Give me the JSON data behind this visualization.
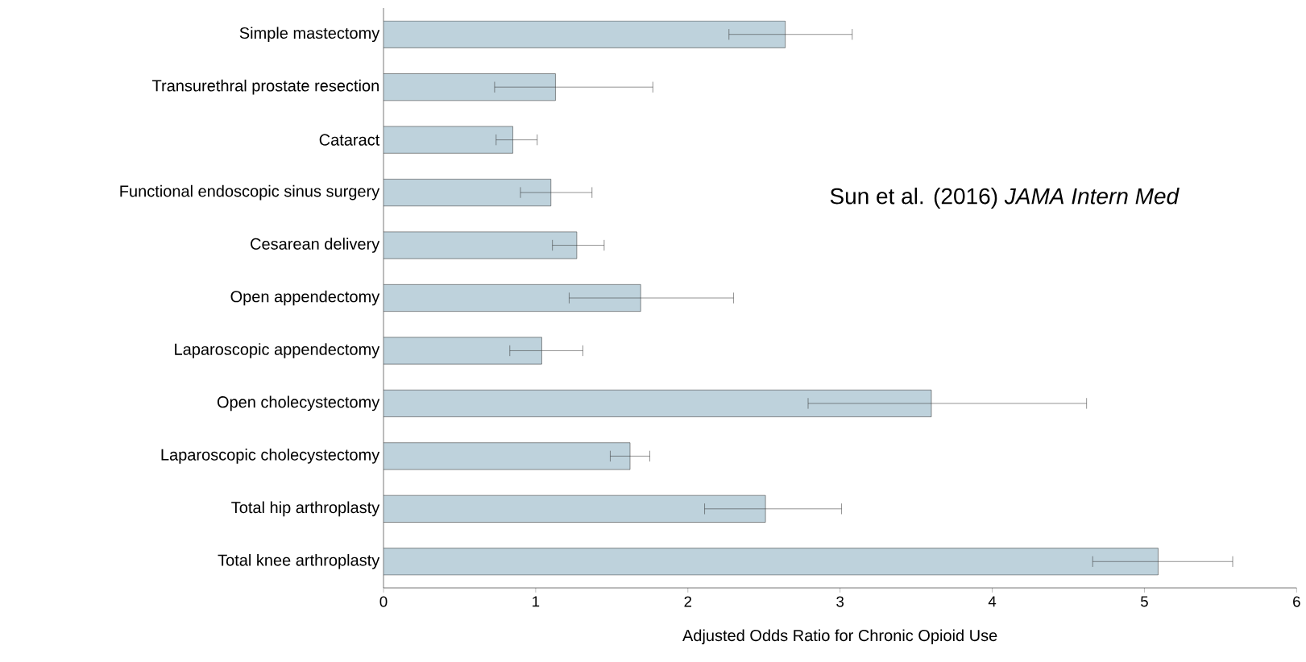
{
  "chart_data": {
    "type": "bar",
    "orientation": "horizontal",
    "xlabel": "Adjusted Odds Ratio for Chronic Opioid Use",
    "annotations": [
      "Sun et al. (2016) *JAMA Intern Med*"
    ],
    "categories": [
      "Simple mastectomy",
      "Transurethral prostate resection",
      "Cataract",
      "Functional endoscopic sinus surgery",
      "Cesarean delivery",
      "Open appendectomy",
      "Laparoscopic appendectomy",
      "Open cholecystectomy",
      "Laparoscopic cholecystectomy",
      "Total hip arthroplasty",
      "Total knee arthroplasty"
    ],
    "values": [
      2.64,
      1.13,
      0.85,
      1.1,
      1.27,
      1.69,
      1.04,
      3.6,
      1.62,
      2.51,
      5.09
    ],
    "errors": [
      [
        2.27,
        3.08
      ],
      [
        0.73,
        1.77
      ],
      [
        0.74,
        1.01
      ],
      [
        0.9,
        1.37
      ],
      [
        1.11,
        1.45
      ],
      [
        1.22,
        2.3
      ],
      [
        0.83,
        1.31
      ],
      [
        2.79,
        4.62
      ],
      [
        1.49,
        1.75
      ],
      [
        2.11,
        3.01
      ],
      [
        4.66,
        5.58
      ]
    ],
    "color": "#bed2dc",
    "xlim": [
      0,
      6
    ],
    "xticks": [
      0,
      1,
      2,
      3,
      4,
      5,
      6
    ],
    "grid": false
  }
}
